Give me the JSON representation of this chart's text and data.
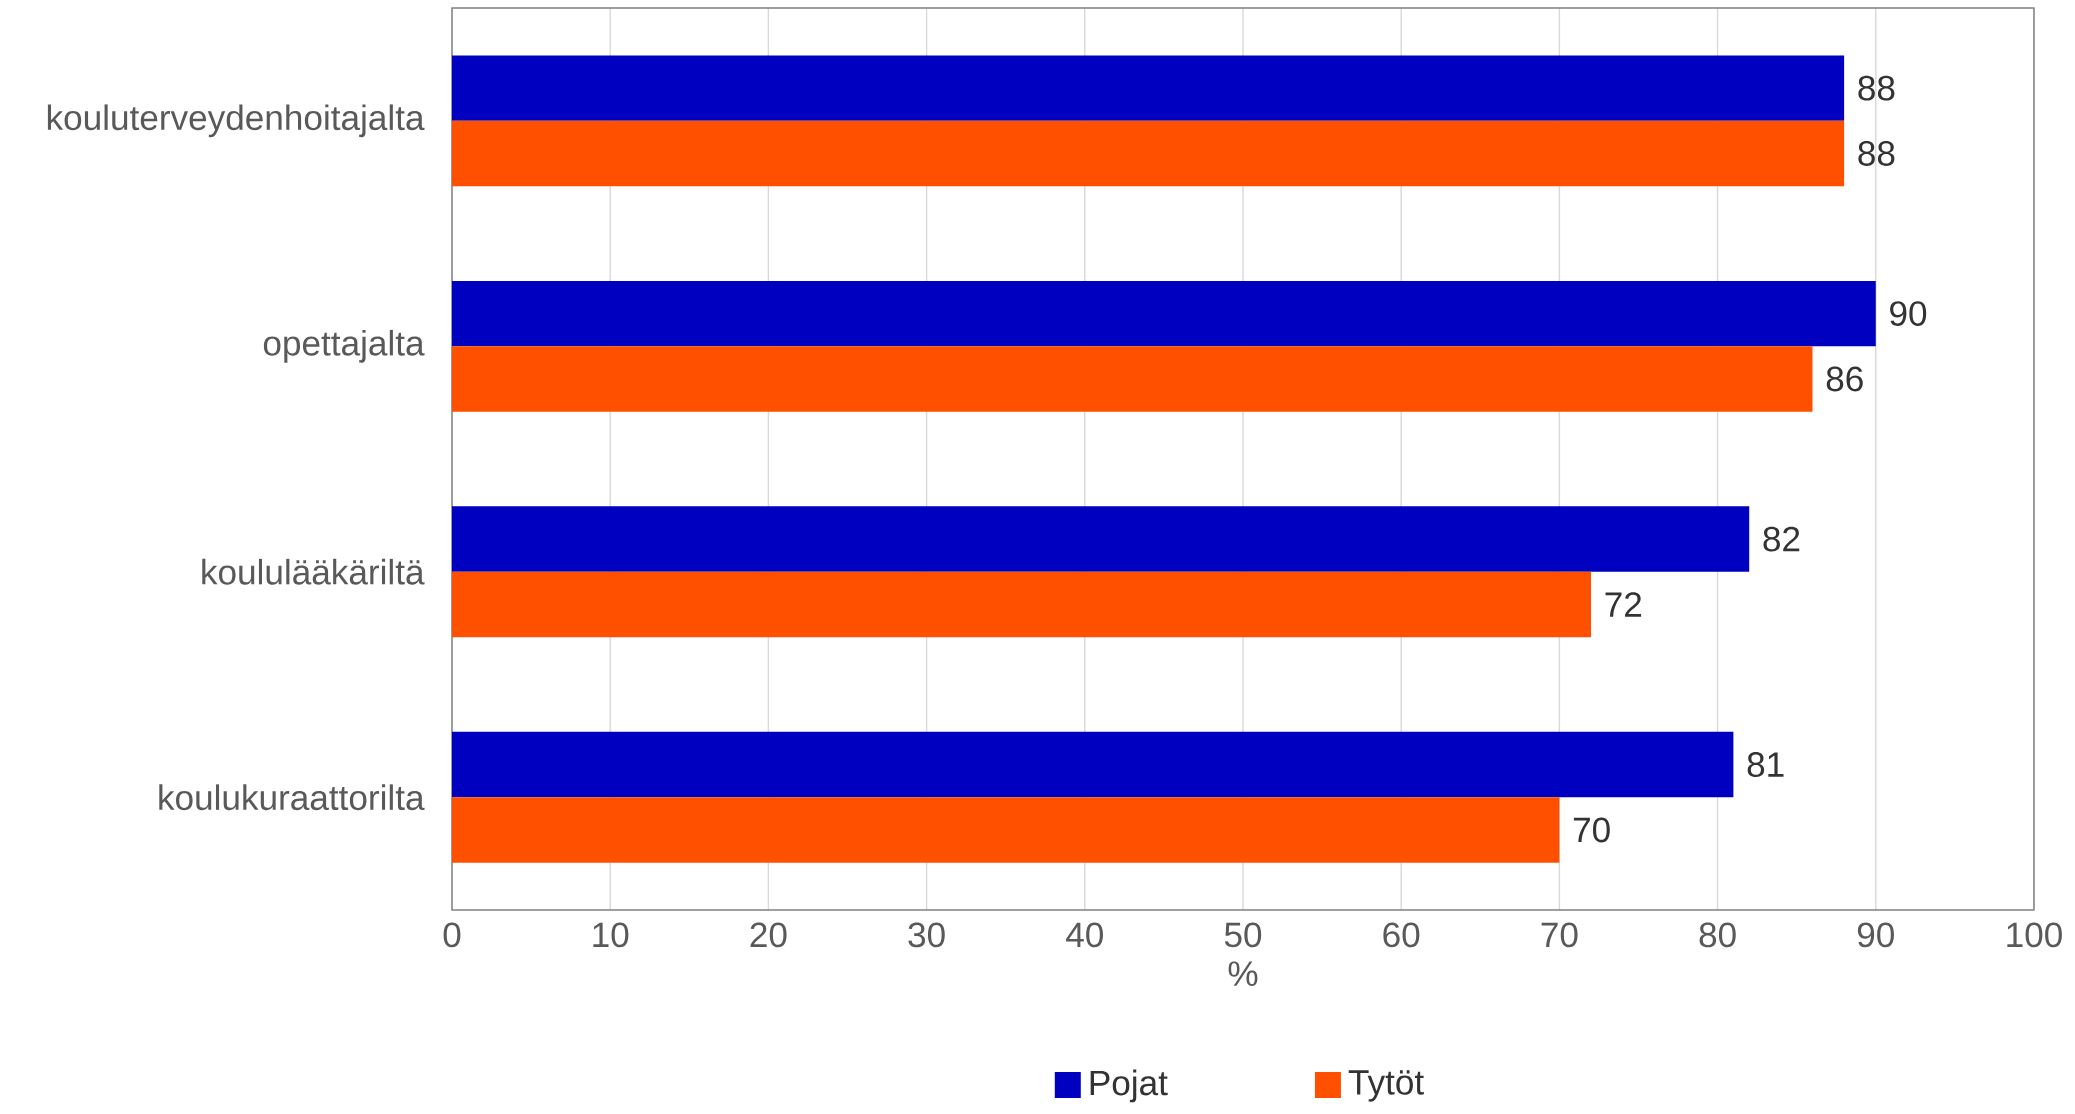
{
  "chart_data": {
    "type": "bar",
    "orientation": "horizontal",
    "categories": [
      "kouluterveydenhoitajalta",
      "opettajalta",
      "koululääkäriltä",
      "koulukuraattorilta"
    ],
    "series": [
      {
        "name": "Pojat",
        "color": "#0000c0",
        "values": [
          88,
          90,
          82,
          81
        ]
      },
      {
        "name": "Tytöt",
        "color": "#ff5000",
        "values": [
          88,
          86,
          72,
          70
        ]
      }
    ],
    "xlim": [
      0,
      100
    ],
    "xticks": [
      0,
      10,
      20,
      30,
      40,
      50,
      60,
      70,
      80,
      90,
      100
    ],
    "xlabel": "%",
    "grid": "x",
    "legend": "bottom",
    "data_labels": true
  }
}
